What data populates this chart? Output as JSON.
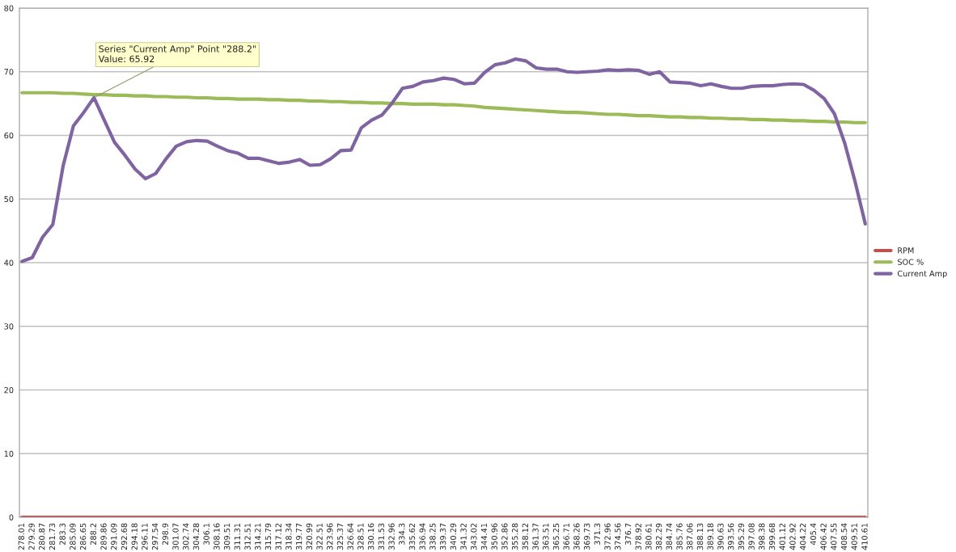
{
  "chart_data": {
    "type": "line",
    "categories": [
      "278.01",
      "279.29",
      "280.87",
      "281.73",
      "283.3",
      "285.09",
      "286.65",
      "288.2",
      "289.86",
      "291.09",
      "292.68",
      "294.18",
      "296.11",
      "297.54",
      "298.9",
      "301.07",
      "302.74",
      "304.28",
      "306.1",
      "308.16",
      "309.51",
      "311.31",
      "312.51",
      "314.21",
      "315.79",
      "317.12",
      "318.34",
      "319.77",
      "320.99",
      "322.51",
      "323.96",
      "325.37",
      "326.64",
      "328.51",
      "330.16",
      "331.53",
      "332.96",
      "334.3",
      "335.62",
      "336.94",
      "338.25",
      "339.37",
      "340.29",
      "341.32",
      "343.02",
      "344.41",
      "350.96",
      "352.86",
      "355.28",
      "358.12",
      "361.37",
      "363.51",
      "365.25",
      "366.71",
      "368.26",
      "369.73",
      "371.3",
      "372.96",
      "374.56",
      "376.7",
      "378.92",
      "380.61",
      "382.29",
      "384.74",
      "385.76",
      "387.06",
      "388.13",
      "389.18",
      "390.63",
      "393.56",
      "395.29",
      "397.08",
      "398.38",
      "399.68",
      "401.12",
      "402.92",
      "404.22",
      "405.4",
      "406.42",
      "407.55",
      "408.54",
      "409.51",
      "410.61"
    ],
    "series": [
      {
        "name": "RPM",
        "color": "#c0504d",
        "values": [
          0,
          0,
          0,
          0,
          0,
          0,
          0,
          0,
          0,
          0,
          0,
          0,
          0,
          0,
          0,
          0,
          0,
          0,
          0,
          0,
          0,
          0,
          0,
          0,
          0,
          0,
          0,
          0,
          0,
          0,
          0,
          0,
          0,
          0,
          0,
          0,
          0,
          0,
          0,
          0,
          0,
          0,
          0,
          0,
          0,
          0,
          0,
          0,
          0,
          0,
          0,
          0,
          0,
          0,
          0,
          0,
          0,
          0,
          0,
          0,
          0,
          0,
          0,
          0,
          0,
          0,
          0,
          0,
          0,
          0,
          0,
          0,
          0,
          0,
          0,
          0,
          0,
          0,
          0,
          0,
          0,
          0,
          0
        ]
      },
      {
        "name": "SOC %",
        "color": "#9bbb59",
        "values": [
          66.7,
          66.7,
          66.7,
          66.7,
          66.6,
          66.6,
          66.5,
          66.4,
          66.4,
          66.3,
          66.3,
          66.2,
          66.2,
          66.1,
          66.1,
          66.0,
          66.0,
          65.9,
          65.9,
          65.8,
          65.8,
          65.7,
          65.7,
          65.7,
          65.6,
          65.6,
          65.5,
          65.5,
          65.4,
          65.4,
          65.3,
          65.3,
          65.2,
          65.2,
          65.1,
          65.1,
          65.0,
          65.0,
          64.9,
          64.9,
          64.9,
          64.8,
          64.8,
          64.7,
          64.6,
          64.4,
          64.3,
          64.2,
          64.1,
          64.0,
          63.9,
          63.8,
          63.7,
          63.6,
          63.6,
          63.5,
          63.4,
          63.3,
          63.3,
          63.2,
          63.1,
          63.1,
          63.0,
          62.9,
          62.9,
          62.8,
          62.8,
          62.7,
          62.7,
          62.6,
          62.6,
          62.5,
          62.5,
          62.4,
          62.4,
          62.3,
          62.3,
          62.2,
          62.2,
          62.1,
          62.1,
          62.0,
          62.0
        ]
      },
      {
        "name": "Current Amp",
        "color": "#8064a2",
        "values": [
          40.2,
          40.8,
          44.0,
          46.0,
          55.2,
          61.5,
          63.6,
          65.92,
          62.4,
          58.9,
          56.9,
          54.7,
          53.2,
          54.0,
          56.3,
          58.3,
          59.0,
          59.2,
          59.1,
          58.3,
          57.6,
          57.2,
          56.4,
          56.4,
          56.0,
          55.6,
          55.8,
          56.2,
          55.3,
          55.4,
          56.3,
          57.6,
          57.7,
          61.2,
          62.4,
          63.2,
          65.1,
          67.4,
          67.7,
          68.4,
          68.6,
          69.0,
          68.8,
          68.1,
          68.2,
          69.9,
          71.1,
          71.4,
          72.0,
          71.7,
          70.6,
          70.4,
          70.4,
          70.0,
          69.9,
          70.0,
          70.1,
          70.3,
          70.2,
          70.3,
          70.2,
          69.6,
          70.0,
          68.4,
          68.3,
          68.2,
          67.8,
          68.1,
          67.7,
          67.4,
          67.4,
          67.7,
          67.8,
          67.8,
          68.0,
          68.1,
          68.0,
          67.1,
          65.8,
          63.4,
          58.8,
          52.8,
          46.1
        ]
      }
    ],
    "ylim": [
      0,
      80
    ],
    "yticks": [
      0,
      10,
      20,
      30,
      40,
      50,
      60,
      70,
      80
    ],
    "grid": "y",
    "legend": "right",
    "marker": "none",
    "line_style": "solid",
    "annotations": [
      {
        "text": "Series \"Current Amp\" Point \"288.2\"\nValue: 65.92",
        "x": "288.2",
        "y": 65.92
      }
    ]
  }
}
